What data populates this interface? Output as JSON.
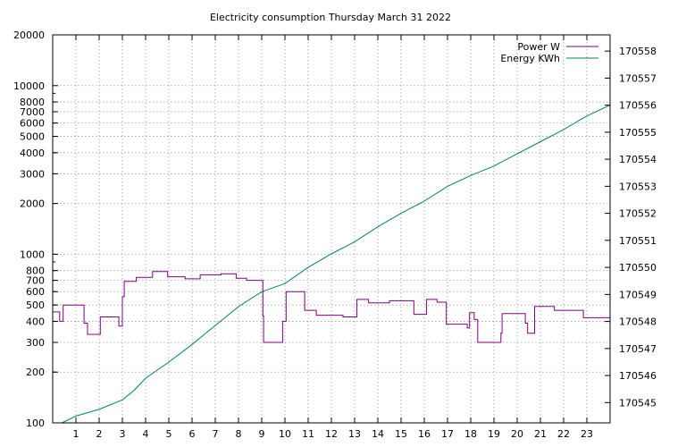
{
  "chart_data": {
    "type": "line",
    "title": "Electricity consumption Thursday March 31 2022",
    "x_ticks": [
      "1",
      "2",
      "3",
      "4",
      "5",
      "6",
      "7",
      "8",
      "9",
      "10",
      "11",
      "12",
      "13",
      "14",
      "15",
      "16",
      "17",
      "18",
      "19",
      "20",
      "21",
      "22",
      "23"
    ],
    "xlim": [
      0,
      24
    ],
    "y_left": {
      "scale": "log",
      "lim": [
        100,
        20000
      ],
      "ticks": [
        100,
        200,
        300,
        400,
        500,
        600,
        700,
        800,
        1000,
        2000,
        3000,
        4000,
        5000,
        6000,
        7000,
        8000,
        10000,
        20000
      ],
      "tick_labels": [
        "100",
        "200",
        "300",
        "400",
        "500",
        "600",
        "700",
        "800",
        "1000",
        "2000",
        "3000",
        "4000",
        "5000",
        "6000",
        "7000",
        "8000",
        "10000",
        "20000"
      ]
    },
    "y_right": {
      "scale": "linear",
      "lim": [
        170544.25,
        170558.6
      ],
      "ticks": [
        170545,
        170546,
        170547,
        170548,
        170549,
        170550,
        170551,
        170552,
        170553,
        170554,
        170555,
        170556,
        170557,
        170558
      ],
      "tick_labels": [
        "170545",
        "170546",
        "170547",
        "170548",
        "170549",
        "170550",
        "170551",
        "170552",
        "170553",
        "170554",
        "170555",
        "170556",
        "170557",
        "170558"
      ]
    },
    "grid": true,
    "legend_position": "top-right",
    "series": [
      {
        "name": "Power W",
        "axis": "left",
        "color": "#800080",
        "step": true,
        "points": [
          [
            0,
            455
          ],
          [
            0.3,
            400
          ],
          [
            0.45,
            500
          ],
          [
            1.35,
            390
          ],
          [
            1.5,
            335
          ],
          [
            2.05,
            425
          ],
          [
            2.85,
            375
          ],
          [
            3.0,
            560
          ],
          [
            3.08,
            690
          ],
          [
            3.6,
            730
          ],
          [
            4.3,
            790
          ],
          [
            4.95,
            735
          ],
          [
            5.7,
            715
          ],
          [
            6.35,
            755
          ],
          [
            7.25,
            765
          ],
          [
            7.9,
            720
          ],
          [
            8.35,
            700
          ],
          [
            9.05,
            430
          ],
          [
            9.08,
            300
          ],
          [
            9.9,
            400
          ],
          [
            10.05,
            600
          ],
          [
            10.85,
            465
          ],
          [
            11.35,
            435
          ],
          [
            12.5,
            425
          ],
          [
            13.1,
            540
          ],
          [
            13.6,
            515
          ],
          [
            14.5,
            530
          ],
          [
            15.55,
            440
          ],
          [
            16.1,
            540
          ],
          [
            16.55,
            520
          ],
          [
            16.95,
            385
          ],
          [
            17.85,
            365
          ],
          [
            17.95,
            450
          ],
          [
            18.15,
            410
          ],
          [
            18.3,
            300
          ],
          [
            19.3,
            340
          ],
          [
            19.35,
            445
          ],
          [
            20.35,
            390
          ],
          [
            20.45,
            340
          ],
          [
            20.75,
            490
          ],
          [
            21.6,
            465
          ],
          [
            22.85,
            420
          ],
          [
            24,
            420
          ]
        ]
      },
      {
        "name": "Energy KWh",
        "axis": "right",
        "color": "#008060",
        "points": [
          [
            0.4,
            170544.25
          ],
          [
            1,
            170544.5
          ],
          [
            2,
            170544.75
          ],
          [
            3,
            170545.1
          ],
          [
            3.5,
            170545.45
          ],
          [
            4,
            170545.9
          ],
          [
            5,
            170546.5
          ],
          [
            6,
            170547.15
          ],
          [
            7,
            170547.85
          ],
          [
            8,
            170548.55
          ],
          [
            9,
            170549.1
          ],
          [
            10,
            170549.4
          ],
          [
            11,
            170550.0
          ],
          [
            12,
            170550.5
          ],
          [
            13,
            170550.95
          ],
          [
            14,
            170551.5
          ],
          [
            15,
            170552.0
          ],
          [
            16,
            170552.45
          ],
          [
            17,
            170553.0
          ],
          [
            18,
            170553.4
          ],
          [
            19,
            170553.75
          ],
          [
            20,
            170554.2
          ],
          [
            21,
            170554.65
          ],
          [
            22,
            170555.1
          ],
          [
            23,
            170555.6
          ],
          [
            24,
            170556.0
          ]
        ]
      }
    ]
  }
}
